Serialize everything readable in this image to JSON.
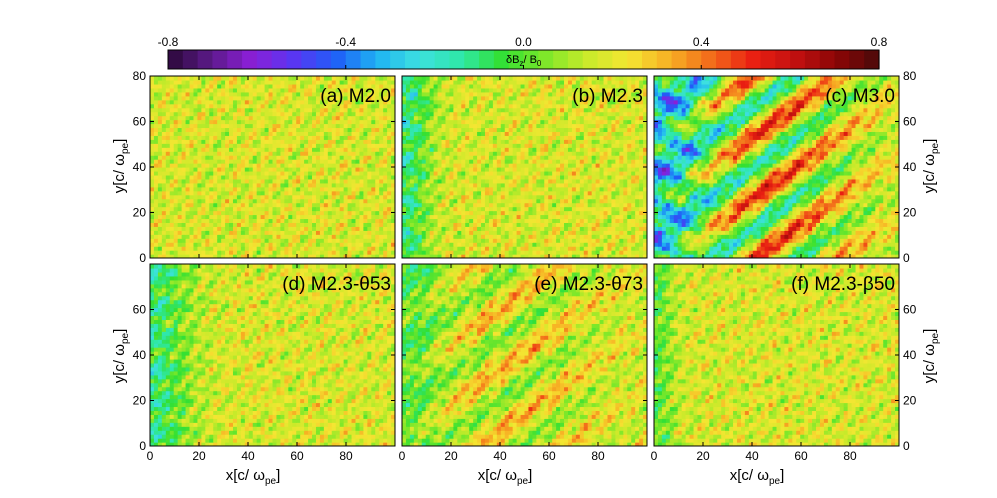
{
  "chart_data": {
    "type": "heatmap",
    "colorbar": {
      "label_main": "δB",
      "label_sub1": "z",
      "label_mid": "/ B",
      "label_sub2": "0",
      "min": -0.8,
      "max": 0.8,
      "ticks": [
        "-0.8",
        "-0.4",
        "0.0",
        "0.4",
        "0.8"
      ],
      "tick_values": [
        -0.8,
        -0.4,
        0.0,
        0.4,
        0.8
      ],
      "colors": [
        "#2a0838",
        "#5b1a87",
        "#8a1fd6",
        "#5a36f2",
        "#1f5ef7",
        "#1fb3f2",
        "#3de0e0",
        "#2fe8a8",
        "#33e033",
        "#7de82a",
        "#c8ea2a",
        "#f5e632",
        "#f7b024",
        "#f26a1a",
        "#ea1f12",
        "#c21010",
        "#8a0606",
        "#4a0a0a"
      ]
    },
    "panels": [
      {
        "label": "(a) M2.0",
        "xlim": [
          0,
          100
        ],
        "ylim": [
          0,
          80
        ],
        "wave_amplitude": 0.0,
        "wave_width": 0,
        "wave_period": 20,
        "oblique_tilt": 0,
        "oblique_amplitude": 0.0
      },
      {
        "label": "(b) M2.3",
        "xlim": [
          0,
          100
        ],
        "ylim": [
          0,
          80
        ],
        "wave_amplitude": 0.5,
        "wave_width": 10,
        "wave_period": 16,
        "oblique_tilt": 0.35,
        "oblique_amplitude": 0.0
      },
      {
        "label": "(c) M3.0",
        "xlim": [
          0,
          100
        ],
        "ylim": [
          0,
          80
        ],
        "wave_amplitude": 0.75,
        "wave_width": 22,
        "wave_period": 16,
        "oblique_tilt": 0.3,
        "oblique_amplitude": 0.35
      },
      {
        "label": "(d) M2.3-θ53",
        "xlim": [
          0,
          100
        ],
        "ylim": [
          0,
          80
        ],
        "wave_amplitude": 0.5,
        "wave_width": 16,
        "wave_period": 14,
        "oblique_tilt": 0.0,
        "oblique_amplitude": 0.0
      },
      {
        "label": "(e) M2.3-θ73",
        "xlim": [
          0,
          100
        ],
        "ylim": [
          0,
          80
        ],
        "wave_amplitude": 0.32,
        "wave_width": 14,
        "wave_period": 18,
        "oblique_tilt": 0.6,
        "oblique_amplitude": 0.15
      },
      {
        "label": "(f) M2.3-β50",
        "xlim": [
          0,
          100
        ],
        "ylim": [
          0,
          80
        ],
        "wave_amplitude": 0.35,
        "wave_width": 8,
        "wave_period": 12,
        "oblique_tilt": 0.0,
        "oblique_amplitude": 0.0
      }
    ],
    "xlabel_main": "x[c/ ω",
    "xlabel_sub": "pe",
    "xlabel_end": "]",
    "ylabel_main": "y[c/ ω",
    "ylabel_sub": "pe",
    "ylabel_end": "]",
    "xticks": [
      0,
      20,
      40,
      60,
      80
    ],
    "yticks_top": [
      0,
      20,
      40,
      60,
      80
    ],
    "yticks_bottom": [
      0,
      20,
      40,
      60
    ]
  }
}
